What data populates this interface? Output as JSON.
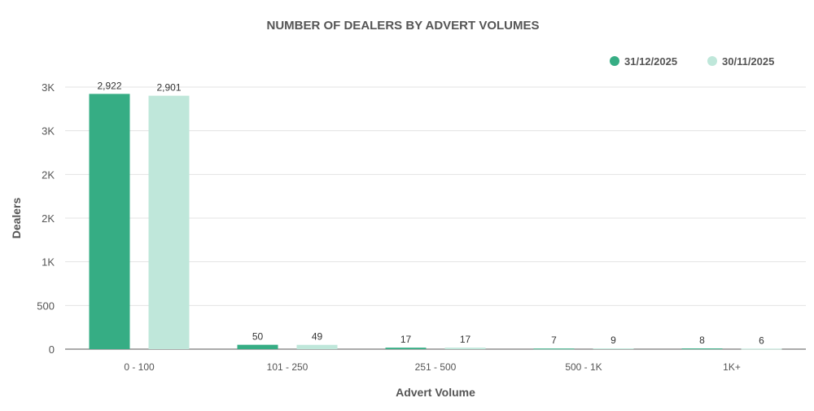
{
  "chart_data": {
    "type": "bar",
    "title": "NUMBER OF DEALERS BY ADVERT VOLUMES",
    "xlabel": "Advert Volume",
    "ylabel": "Dealers",
    "categories": [
      "0 - 100",
      "101 - 250",
      "251 - 500",
      "500 - 1K",
      "1K+"
    ],
    "series": [
      {
        "name": "31/12/2025",
        "color": "#36ad84",
        "values": [
          2922,
          50,
          17,
          7,
          8
        ],
        "labels": [
          "2,922",
          "50",
          "17",
          "7",
          "8"
        ]
      },
      {
        "name": "30/11/2025",
        "color": "#bfe7da",
        "values": [
          2901,
          49,
          17,
          9,
          6
        ],
        "labels": [
          "2,901",
          "49",
          "17",
          "9",
          "6"
        ]
      }
    ],
    "yticks": [
      0,
      500,
      1000,
      1500,
      2000,
      2500,
      3000
    ],
    "ytick_labels": [
      "0",
      "500",
      "1K",
      "2K",
      "2K",
      "3K",
      "3K"
    ],
    "ylim": [
      0,
      3000
    ],
    "grid": true,
    "legend_position": "top-right"
  }
}
